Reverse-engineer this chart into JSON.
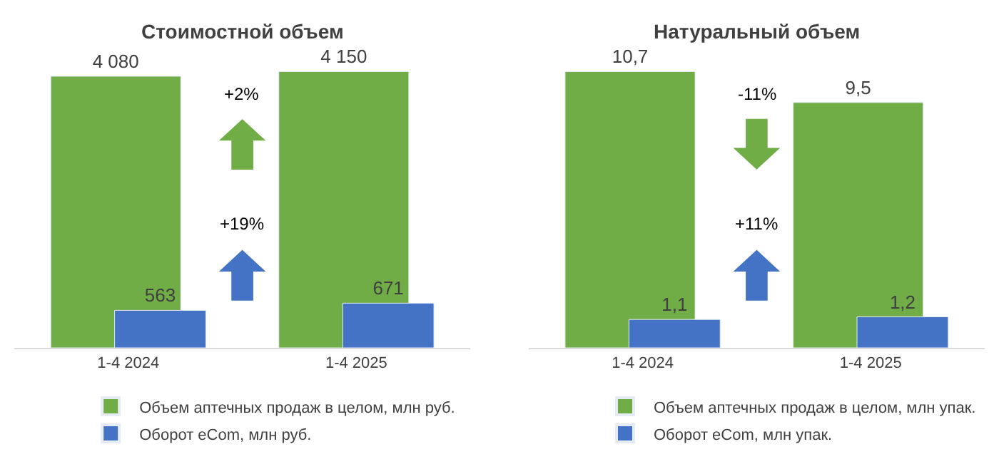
{
  "chart_data": [
    {
      "type": "bar",
      "title": "Стоимостной объем",
      "categories": [
        "1-4 2024",
        "1-4 2025"
      ],
      "legend": "bottom",
      "series": [
        {
          "name": "Объем аптечных продаж в целом, млн руб.",
          "color": "#70ad47",
          "values": [
            4080,
            4150
          ],
          "value_labels": [
            "4 080",
            "4 150"
          ]
        },
        {
          "name": "Оборот eCom, млн руб.",
          "color": "#4472c4",
          "values": [
            563,
            671
          ],
          "value_labels": [
            "563",
            "671"
          ]
        }
      ],
      "annotations": [
        "+2%",
        "+19%"
      ]
    },
    {
      "type": "bar",
      "title": "Натуральный объем",
      "categories": [
        "1-4 2024",
        "1-4 2025"
      ],
      "legend": "bottom",
      "series": [
        {
          "name": "Объем аптечных продаж в целом, млн упак.",
          "color": "#70ad47",
          "values": [
            10.7,
            9.5
          ],
          "value_labels": [
            "10,7",
            "9,5"
          ]
        },
        {
          "name": "Оборот eCom, млн упак.",
          "color": "#4472c4",
          "values": [
            1.1,
            1.2
          ],
          "value_labels": [
            "1,1",
            "1,2"
          ]
        }
      ],
      "annotations": [
        "-11%",
        "+11%"
      ]
    }
  ]
}
